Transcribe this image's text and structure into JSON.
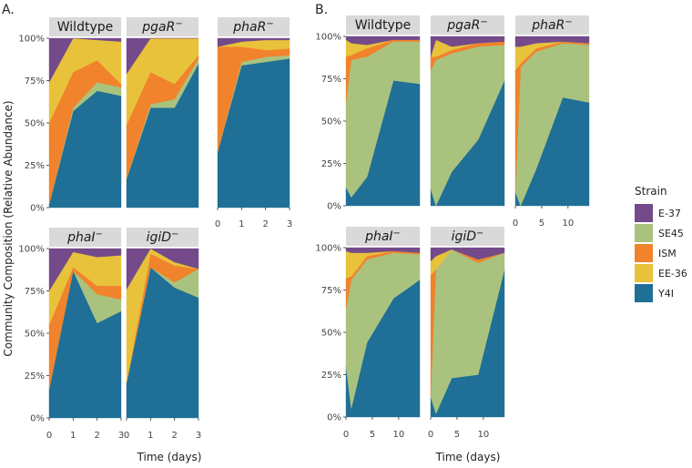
{
  "chart_data": {
    "type": "area",
    "subtype": "stacked-area-faceted",
    "ylabel": "Community Composition (Relative Abundance)",
    "xlabel": "Time (days)",
    "legend": {
      "title": "Strain",
      "position": "right",
      "entries": [
        {
          "name": "E-37",
          "color": "#744a8a"
        },
        {
          "name": "SE45",
          "color": "#a9c37e"
        },
        {
          "name": "ISM",
          "color": "#f0832c"
        },
        {
          "name": "EE-36",
          "color": "#e8c23a"
        },
        {
          "name": "Y4I",
          "color": "#1f6f96"
        }
      ]
    },
    "stack_order_bottom_to_top": [
      "Y4I",
      "SE45",
      "ISM",
      "EE-36",
      "E-37"
    ],
    "yticks": [
      "0%",
      "25%",
      "50%",
      "75%",
      "100%"
    ],
    "panels": [
      {
        "letter": "A.",
        "xlim": [
          0,
          3
        ],
        "xticks": [
          "0",
          "1",
          "2",
          "3"
        ],
        "facets": [
          {
            "title": "Wildtype",
            "x": [
              0,
              1,
              2,
              3
            ],
            "series": {
              "Y4I": [
                2,
                57,
                69,
                66
              ],
              "SE45": [
                0,
                2,
                5,
                5
              ],
              "ISM": [
                48,
                21,
                13,
                2
              ],
              "EE-36": [
                24,
                20,
                12,
                25
              ],
              "E-37": [
                26,
                0,
                1,
                2
              ]
            }
          },
          {
            "title": "pgaR",
            "sup": "−",
            "x": [
              0,
              1,
              2,
              3
            ],
            "series": {
              "Y4I": [
                17,
                59,
                59,
                85
              ],
              "SE45": [
                0,
                2,
                5,
                3
              ],
              "ISM": [
                32,
                19,
                9,
                2
              ],
              "EE-36": [
                30,
                20,
                27,
                10
              ],
              "E-37": [
                21,
                0,
                0,
                0
              ]
            }
          },
          {
            "title": "phaR",
            "sup": "−",
            "x": [
              0,
              1,
              2,
              3
            ],
            "series": {
              "Y4I": [
                33,
                84,
                86,
                88
              ],
              "SE45": [
                0,
                2,
                3,
                2
              ],
              "ISM": [
                62,
                9,
                4,
                4
              ],
              "EE-36": [
                0,
                3,
                6,
                5
              ],
              "E-37": [
                5,
                2,
                1,
                1
              ]
            }
          },
          {
            "title": "phaI",
            "sup": "−",
            "x": [
              0,
              1,
              2,
              3
            ],
            "series": {
              "Y4I": [
                17,
                87,
                56,
                63
              ],
              "SE45": [
                0,
                0,
                17,
                7
              ],
              "ISM": [
                38,
                2,
                5,
                8
              ],
              "EE-36": [
                20,
                9,
                17,
                18
              ],
              "E-37": [
                25,
                2,
                5,
                4
              ]
            }
          },
          {
            "title": "igiD",
            "sup": "−",
            "x": [
              0,
              1,
              2,
              3
            ],
            "series": {
              "Y4I": [
                21,
                89,
                77,
                71
              ],
              "SE45": [
                0,
                0,
                3,
                17
              ],
              "ISM": [
                0,
                8,
                10,
                0
              ],
              "EE-36": [
                55,
                3,
                2,
                0
              ],
              "E-37": [
                24,
                0,
                8,
                12
              ]
            }
          }
        ]
      },
      {
        "letter": "B.",
        "xlim": [
          0,
          14
        ],
        "xticks": [
          "0",
          "5",
          "10"
        ],
        "xtick_values": [
          0,
          5,
          10
        ],
        "facets": [
          {
            "title": "Wildtype",
            "x": [
              0,
              1,
              4,
              9,
              14
            ],
            "series": {
              "Y4I": [
                11,
                5,
                17,
                74,
                72
              ],
              "SE45": [
                50,
                81,
                71,
                23,
                25
              ],
              "ISM": [
                27,
                3,
                5,
                1,
                1
              ],
              "EE-36": [
                10,
                7,
                2,
                0,
                0
              ],
              "E-37": [
                2,
                4,
                5,
                2,
                2
              ]
            }
          },
          {
            "title": "pgaR",
            "sup": "−",
            "x": [
              0,
              1,
              4,
              9,
              14
            ],
            "series": {
              "Y4I": [
                10,
                0,
                20,
                39,
                74
              ],
              "SE45": [
                70,
                86,
                70,
                55,
                21
              ],
              "ISM": [
                8,
                2,
                2,
                2,
                2
              ],
              "EE-36": [
                0,
                10,
                2,
                0,
                0
              ],
              "E-37": [
                12,
                2,
                6,
                4,
                3
              ]
            }
          },
          {
            "title": "phaR",
            "sup": "−",
            "x": [
              0,
              1,
              4,
              9,
              14
            ],
            "series": {
              "Y4I": [
                8,
                0,
                22,
                64,
                61
              ],
              "SE45": [
                0,
                82,
                69,
                32,
                34
              ],
              "ISM": [
                72,
                2,
                2,
                1,
                1
              ],
              "EE-36": [
                14,
                10,
                3,
                0,
                0
              ],
              "E-37": [
                6,
                6,
                4,
                3,
                4
              ]
            }
          },
          {
            "title": "phaI",
            "sup": "−",
            "x": [
              0,
              1,
              4,
              9,
              14
            ],
            "series": {
              "Y4I": [
                30,
                5,
                44,
                70,
                81
              ],
              "SE45": [
                34,
                76,
                49,
                27,
                15
              ],
              "ISM": [
                18,
                2,
                2,
                1,
                1
              ],
              "EE-36": [
                16,
                14,
                2,
                0,
                0
              ],
              "E-37": [
                2,
                3,
                3,
                2,
                3
              ]
            }
          },
          {
            "title": "igiD",
            "sup": "−",
            "x": [
              0,
              1,
              4,
              9,
              14
            ],
            "series": {
              "Y4I": [
                12,
                2,
                23,
                25,
                87
              ],
              "SE45": [
                0,
                85,
                76,
                66,
                10
              ],
              "ISM": [
                72,
                0,
                0,
                2,
                0
              ],
              "EE-36": [
                8,
                8,
                0,
                0,
                0
              ],
              "E-37": [
                8,
                5,
                1,
                7,
                3
              ]
            }
          }
        ]
      }
    ]
  }
}
